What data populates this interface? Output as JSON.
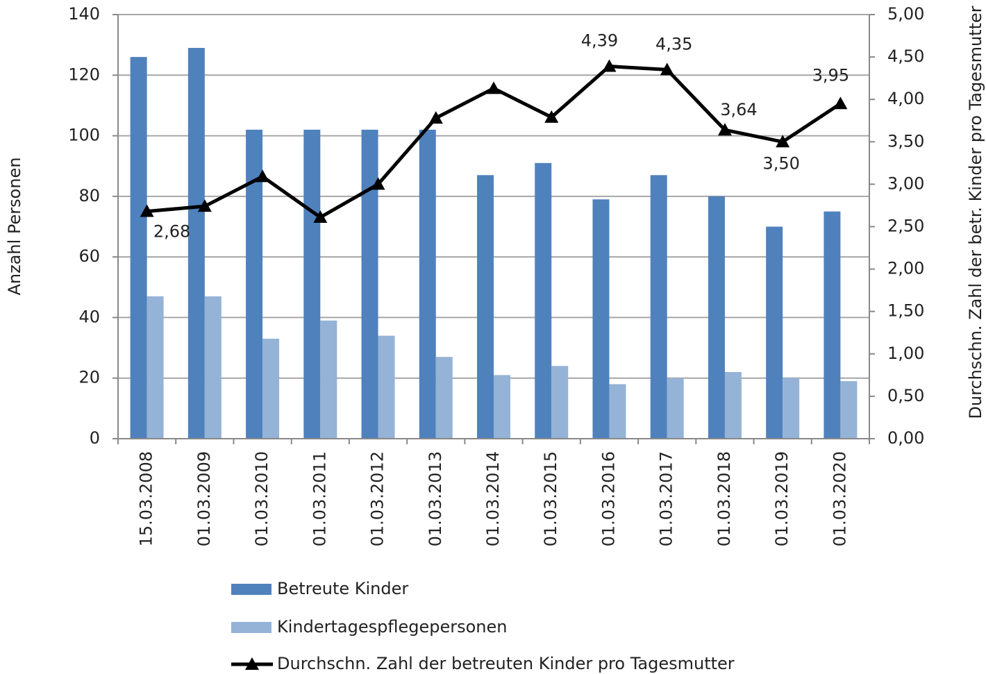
{
  "chart_data": {
    "type": "bar_line",
    "categories": [
      "15.03.2008",
      "01.03.2009",
      "01.03.2010",
      "01.03.2011",
      "01.03.2012",
      "01.03.2013",
      "01.03.2014",
      "01.03.2015",
      "01.03.2016",
      "01.03.2017",
      "01.03.2018",
      "01.03.2019",
      "01.03.2020"
    ],
    "series": [
      {
        "name": "Betreute Kinder",
        "color": "#4f81bd",
        "values": [
          126,
          129,
          102,
          102,
          102,
          102,
          87,
          91,
          79,
          87,
          80,
          70,
          75
        ]
      },
      {
        "name": "Kindertagespflegepersonen",
        "color": "#95b3d7",
        "values": [
          47,
          47,
          33,
          39,
          34,
          27,
          21,
          24,
          18,
          20,
          22,
          20,
          19
        ]
      },
      {
        "name": "Durchschn. Zahl der betreuten Kinder pro Tagesmutter",
        "color": "#000000",
        "axis": "y2",
        "type": "line",
        "values": [
          2.68,
          2.74,
          3.09,
          2.61,
          3.0,
          3.78,
          4.13,
          3.79,
          4.39,
          4.35,
          3.64,
          3.5,
          3.95
        ],
        "value_labels": [
          "2,68",
          null,
          null,
          null,
          null,
          null,
          null,
          null,
          "4,39",
          "4,35",
          "3,64",
          "3,50",
          "3,95"
        ]
      }
    ],
    "ylabel": "Anzahl Personen",
    "y2label": "Durchschn. Zahl der betr. Kinder pro Tagesmutter",
    "ylim": [
      0,
      140
    ],
    "yticks": [
      0,
      20,
      40,
      60,
      80,
      100,
      120,
      140
    ],
    "y2lim": [
      0,
      5
    ],
    "y2ticks": [
      {
        "value": 0,
        "label": "0,00"
      },
      {
        "value": 0.5,
        "label": "0,50"
      },
      {
        "value": 1,
        "label": "1,00"
      },
      {
        "value": 1.5,
        "label": "1,50"
      },
      {
        "value": 2,
        "label": "2,00"
      },
      {
        "value": 2.5,
        "label": "2,50"
      },
      {
        "value": 3,
        "label": "3,00"
      },
      {
        "value": 3.5,
        "label": "3,50"
      },
      {
        "value": 4,
        "label": "4,00"
      },
      {
        "value": 4.5,
        "label": "4,50"
      },
      {
        "value": 5,
        "label": "5,00"
      }
    ],
    "grid": true
  }
}
